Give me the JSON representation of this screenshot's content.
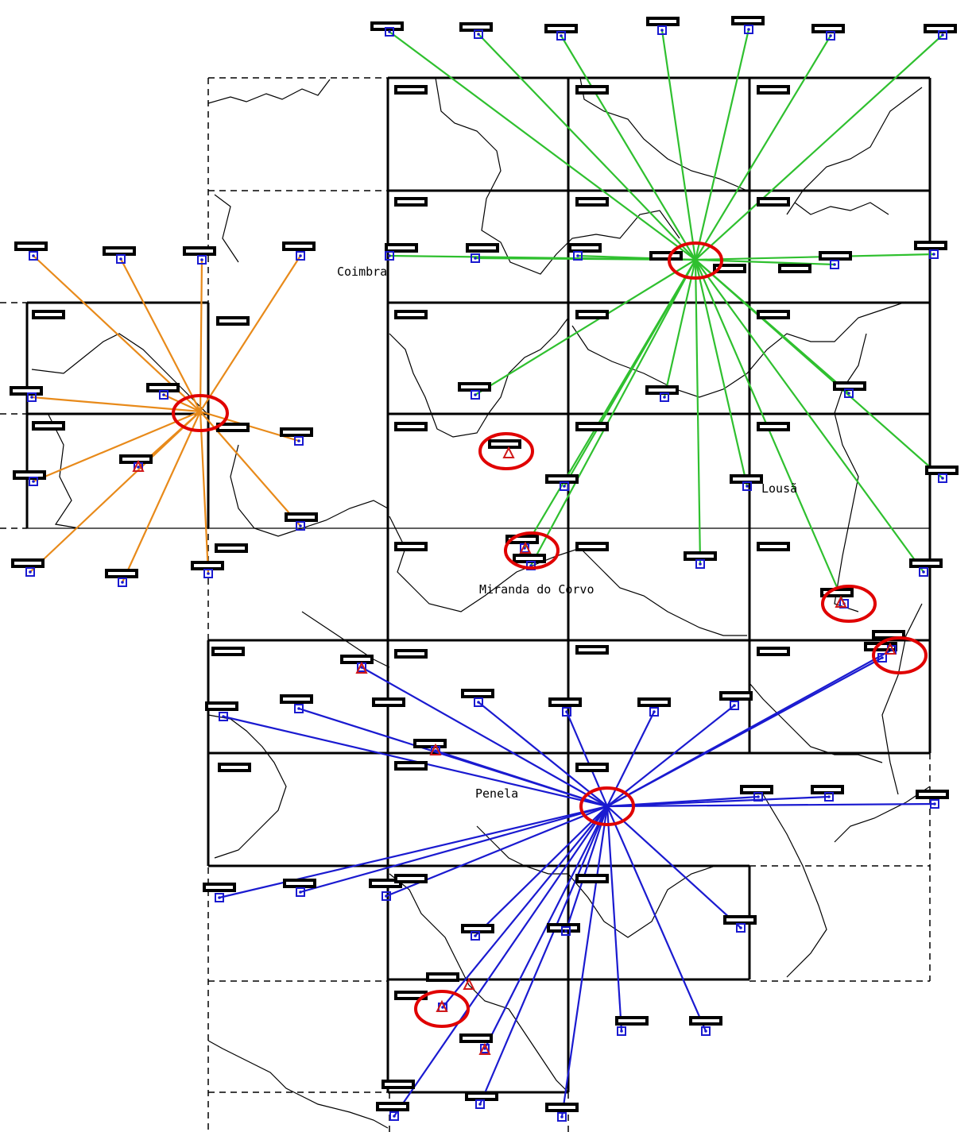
{
  "map": {
    "place_labels": {
      "coimbra": "Coimbra",
      "lousa": "Lousã",
      "miranda": "Miranda do Corvo",
      "penela": "Penela"
    },
    "colors": {
      "grid": "#000000",
      "outline": "#000000",
      "rays_west": "#e88a1a",
      "rays_north": "#2fc02f",
      "rays_south": "#1a1ad0",
      "station_marker": "#1a1ad0",
      "triangle_marker": "#d01a1a",
      "highlight_circle": "#e00000"
    },
    "icons": {
      "station": "square-station-icon",
      "triangulation": "triangle-marker-icon",
      "highlight": "red-circle-highlight"
    }
  }
}
